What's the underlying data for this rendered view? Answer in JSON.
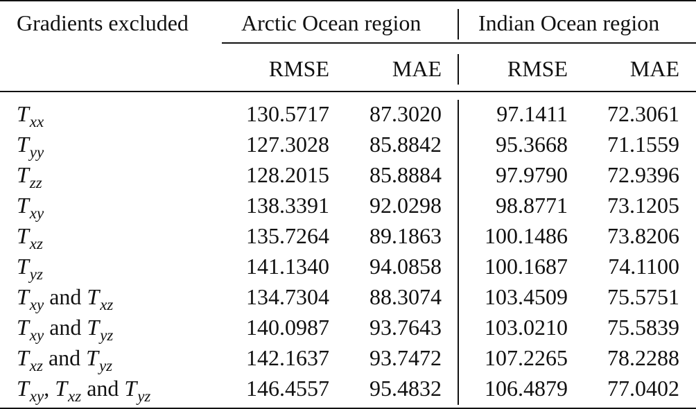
{
  "header": {
    "gradients_excluded": "Gradients excluded",
    "arctic": "Arctic Ocean region",
    "indian": "Indian Ocean region",
    "rmse": "RMSE",
    "mae": "MAE"
  },
  "rows": [
    {
      "label": {
        "terms": [
          {
            "sym": "T",
            "sub": "xx"
          }
        ],
        "joiners": []
      },
      "arctic_rmse": "130.5717",
      "arctic_mae": "87.3020",
      "indian_rmse": "97.1411",
      "indian_mae": "72.3061"
    },
    {
      "label": {
        "terms": [
          {
            "sym": "T",
            "sub": "yy"
          }
        ],
        "joiners": []
      },
      "arctic_rmse": "127.3028",
      "arctic_mae": "85.8842",
      "indian_rmse": "95.3668",
      "indian_mae": "71.1559"
    },
    {
      "label": {
        "terms": [
          {
            "sym": "T",
            "sub": "zz"
          }
        ],
        "joiners": []
      },
      "arctic_rmse": "128.2015",
      "arctic_mae": "85.8884",
      "indian_rmse": "97.9790",
      "indian_mae": "72.9396"
    },
    {
      "label": {
        "terms": [
          {
            "sym": "T",
            "sub": "xy"
          }
        ],
        "joiners": []
      },
      "arctic_rmse": "138.3391",
      "arctic_mae": "92.0298",
      "indian_rmse": "98.8771",
      "indian_mae": "73.1205"
    },
    {
      "label": {
        "terms": [
          {
            "sym": "T",
            "sub": "xz"
          }
        ],
        "joiners": []
      },
      "arctic_rmse": "135.7264",
      "arctic_mae": "89.1863",
      "indian_rmse": "100.1486",
      "indian_mae": "73.8206"
    },
    {
      "label": {
        "terms": [
          {
            "sym": "T",
            "sub": "yz"
          }
        ],
        "joiners": []
      },
      "arctic_rmse": "141.1340",
      "arctic_mae": "94.0858",
      "indian_rmse": "100.1687",
      "indian_mae": "74.1100"
    },
    {
      "label": {
        "terms": [
          {
            "sym": "T",
            "sub": "xy"
          },
          {
            "sym": "T",
            "sub": "xz"
          }
        ],
        "joiners": [
          " and "
        ]
      },
      "arctic_rmse": "134.7304",
      "arctic_mae": "88.3074",
      "indian_rmse": "103.4509",
      "indian_mae": "75.5751"
    },
    {
      "label": {
        "terms": [
          {
            "sym": "T",
            "sub": "xy"
          },
          {
            "sym": "T",
            "sub": "yz"
          }
        ],
        "joiners": [
          " and "
        ]
      },
      "arctic_rmse": "140.0987",
      "arctic_mae": "93.7643",
      "indian_rmse": "103.0210",
      "indian_mae": "75.5839"
    },
    {
      "label": {
        "terms": [
          {
            "sym": "T",
            "sub": "xz"
          },
          {
            "sym": "T",
            "sub": "yz"
          }
        ],
        "joiners": [
          " and "
        ]
      },
      "arctic_rmse": "142.1637",
      "arctic_mae": "93.7472",
      "indian_rmse": "107.2265",
      "indian_mae": "78.2288"
    },
    {
      "label": {
        "terms": [
          {
            "sym": "T",
            "sub": "xy"
          },
          {
            "sym": "T",
            "sub": "xz"
          },
          {
            "sym": "T",
            "sub": "yz"
          }
        ],
        "joiners": [
          ", ",
          " and "
        ]
      },
      "arctic_rmse": "146.4557",
      "arctic_mae": "95.4832",
      "indian_rmse": "106.4879",
      "indian_mae": "77.0402"
    }
  ]
}
